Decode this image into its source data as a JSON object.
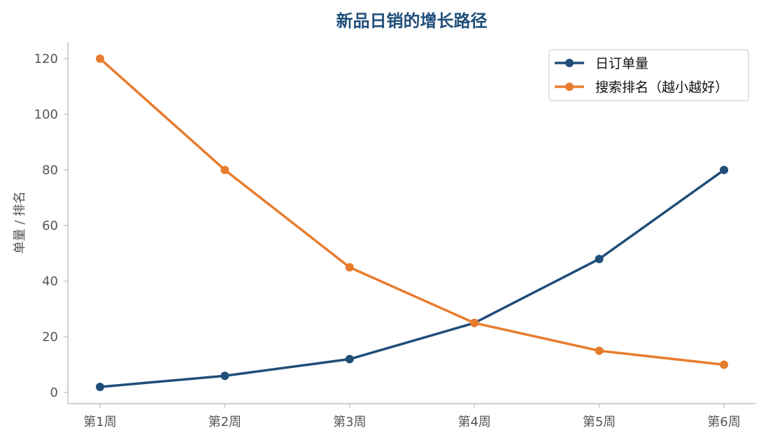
{
  "chart_data": {
    "type": "line",
    "title": "新品日销的增长路径",
    "xlabel": "",
    "ylabel": "单量 / 排名",
    "categories": [
      "第1周",
      "第2周",
      "第3周",
      "第4周",
      "第5周",
      "第6周"
    ],
    "series": [
      {
        "name": "日订单量",
        "values": [
          2,
          6,
          12,
          25,
          48,
          80
        ],
        "color": "#1f4e79"
      },
      {
        "name": "搜索排名（越小越好）",
        "values": [
          120,
          80,
          45,
          25,
          15,
          10
        ],
        "color": "#e87c2e"
      }
    ],
    "ylim": [
      -4,
      126
    ],
    "yticks": [
      0,
      20,
      40,
      60,
      80,
      100,
      120
    ],
    "grid": false,
    "legend_position": "top-right"
  }
}
